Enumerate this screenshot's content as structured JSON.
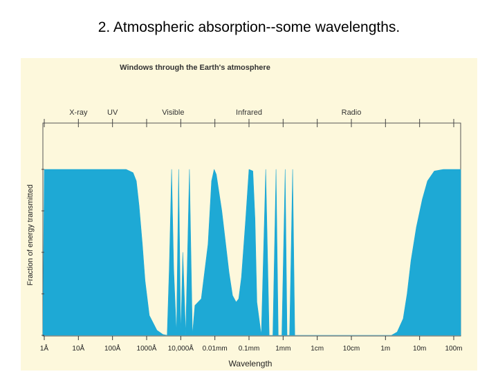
{
  "slide": {
    "title": "2. Atmospheric absorption--some wavelengths."
  },
  "chart_data": {
    "type": "area",
    "title": "Windows through the Earth's atmosphere",
    "xlabel": "Wavelength",
    "ylabel": "Fraction of energy transmitted",
    "x_scale": "log",
    "x_unit": "meters",
    "x_ticks": [
      {
        "value": 1e-10,
        "label": "1Å"
      },
      {
        "value": 1e-09,
        "label": "10Å"
      },
      {
        "value": 1e-08,
        "label": "100Å"
      },
      {
        "value": 1e-07,
        "label": "1000Å"
      },
      {
        "value": 1e-06,
        "label": "10,000Å"
      },
      {
        "value": 1e-05,
        "label": "0.01mm"
      },
      {
        "value": 0.0001,
        "label": "0.1mm"
      },
      {
        "value": 0.001,
        "label": "1mm"
      },
      {
        "value": 0.01,
        "label": "1cm"
      },
      {
        "value": 0.1,
        "label": "10cm"
      },
      {
        "value": 1,
        "label": "1m"
      },
      {
        "value": 10,
        "label": "10m"
      },
      {
        "value": 100,
        "label": "100m"
      }
    ],
    "bands": [
      {
        "label": "X-ray",
        "value": 1e-09
      },
      {
        "label": "UV",
        "value": 1e-08
      },
      {
        "label": "Visible",
        "value": 6e-07
      },
      {
        "label": "Infrared",
        "value": 0.0001
      },
      {
        "label": "Radio",
        "value": 0.1
      }
    ],
    "ylim": [
      0,
      1
    ],
    "series": [
      {
        "fill": "#1ea9d5",
        "x": [
          1e-10,
          2.5e-08,
          4e-08,
          5e-08,
          6e-08,
          7.5e-08,
          9e-08,
          1.2e-07,
          2e-07,
          3e-07,
          4e-07,
          4.6e-07,
          5.4e-07,
          6.2e-07,
          7.5e-07,
          8.7e-07,
          1e-06,
          1.15e-06,
          1.4e-06,
          1.8e-06,
          2.2e-06,
          2.6e-06,
          4e-06,
          6.3e-06,
          8e-06,
          9.5e-06,
          1.1e-05,
          1.6e-05,
          2.6e-05,
          3.3e-05,
          4.2e-05,
          5e-05,
          6e-05,
          8e-05,
          0.0001,
          0.00013,
          0.00015,
          0.00017,
          0.00023,
          0.00031,
          0.00039,
          0.0005,
          0.00062,
          0.00072,
          0.00092,
          0.00115,
          0.0013,
          0.00155,
          0.0019,
          0.0022,
          0.0025,
          0.003,
          1.5,
          2.2,
          3.3,
          4.3,
          5.6,
          8,
          12,
          17,
          27,
          50,
          220
        ],
        "y": [
          1.0,
          1.0,
          0.98,
          0.93,
          0.78,
          0.55,
          0.33,
          0.12,
          0.03,
          0.005,
          0.0,
          0.4,
          1.0,
          0.4,
          0.0,
          1.0,
          0.0,
          0.5,
          0.0,
          1.0,
          0.0,
          0.18,
          0.22,
          0.55,
          0.93,
          1.0,
          0.97,
          0.75,
          0.38,
          0.24,
          0.2,
          0.22,
          0.35,
          0.7,
          1.0,
          0.99,
          0.7,
          0.2,
          0.0,
          1.0,
          0.0,
          0.0,
          1.0,
          0.0,
          0.0,
          1.0,
          0.0,
          0.0,
          1.0,
          0.0,
          0.0,
          0.0,
          0.0,
          0.02,
          0.1,
          0.25,
          0.45,
          0.65,
          0.82,
          0.93,
          0.99,
          1.0,
          1.0
        ]
      }
    ],
    "background": "#fdf8dc",
    "grid": false,
    "legend": "none"
  }
}
